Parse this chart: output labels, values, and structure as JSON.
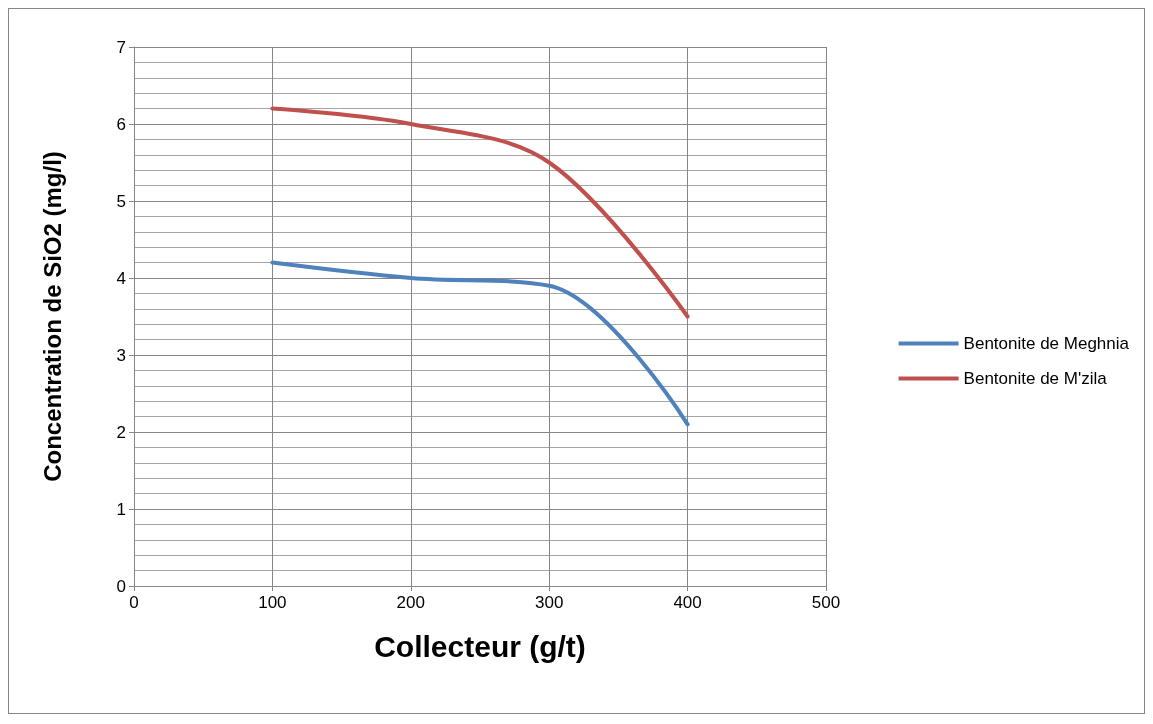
{
  "chart_data": {
    "type": "line",
    "xlabel": "Collecteur (g/t)",
    "ylabel": "Concentration de SiO2 (mg/l)",
    "x": [
      100,
      200,
      300,
      400
    ],
    "series": [
      {
        "name": "Bentonite de Meghnia",
        "color": "#4f81bd",
        "values": [
          4.2,
          4.0,
          3.9,
          2.1
        ]
      },
      {
        "name": "Bentonite de M'zila",
        "color": "#c0504d",
        "values": [
          6.2,
          6.0,
          5.5,
          3.5
        ]
      }
    ],
    "xlim": [
      0,
      500
    ],
    "xticks": [
      0,
      100,
      200,
      300,
      400,
      500
    ],
    "ylim": [
      0,
      7
    ],
    "yticks": [
      0,
      1,
      2,
      3,
      4,
      5,
      6,
      7
    ],
    "grid": true,
    "legend": "right",
    "marker": "none",
    "line_style": "solid"
  }
}
